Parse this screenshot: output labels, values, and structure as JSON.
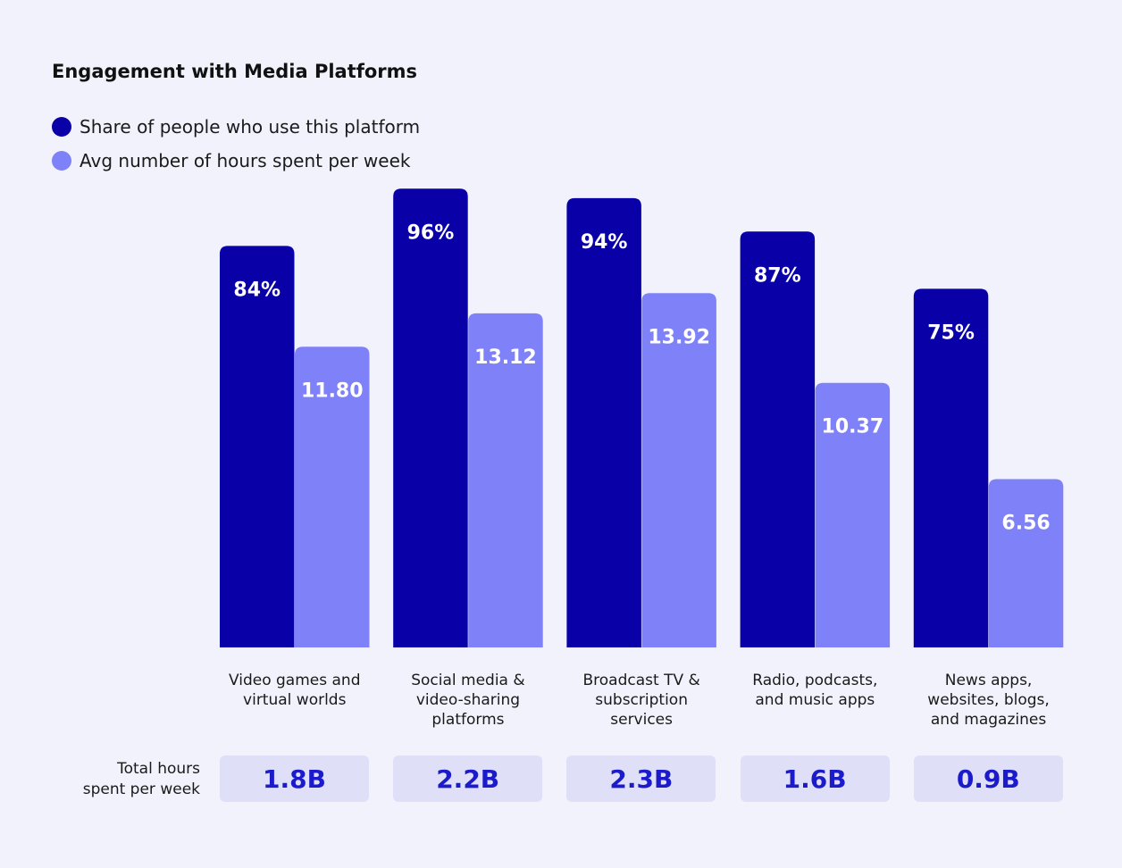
{
  "chart_data": {
    "type": "bar",
    "title": "Engagement with Media Platforms",
    "categories": [
      {
        "lines": [
          "Video games and",
          "virtual worlds"
        ]
      },
      {
        "lines": [
          "Social media &",
          "video-sharing",
          "platforms"
        ]
      },
      {
        "lines": [
          "Broadcast TV &",
          "subscription",
          "services"
        ]
      },
      {
        "lines": [
          "Radio, podcasts,",
          "and music apps"
        ]
      },
      {
        "lines": [
          "News apps,",
          "websites, blogs,",
          "and magazines"
        ]
      }
    ],
    "series": [
      {
        "name": "Share of people who use this platform",
        "color": "#0a00a8",
        "values": [
          84,
          96,
          94,
          87,
          75
        ],
        "labels": [
          "84%",
          "96%",
          "94%",
          "87%",
          "75%"
        ]
      },
      {
        "name": "Avg number of hours spent per week",
        "color": "#7f81f8",
        "values": [
          11.8,
          13.12,
          13.92,
          10.37,
          6.56
        ],
        "labels": [
          "11.80",
          "13.12",
          "13.92",
          "10.37",
          "6.56"
        ]
      }
    ],
    "totals_heading": [
      "Total hours",
      "spent per week"
    ],
    "totals": [
      "1.8B",
      "2.2B",
      "2.3B",
      "1.6B",
      "0.9B"
    ]
  }
}
